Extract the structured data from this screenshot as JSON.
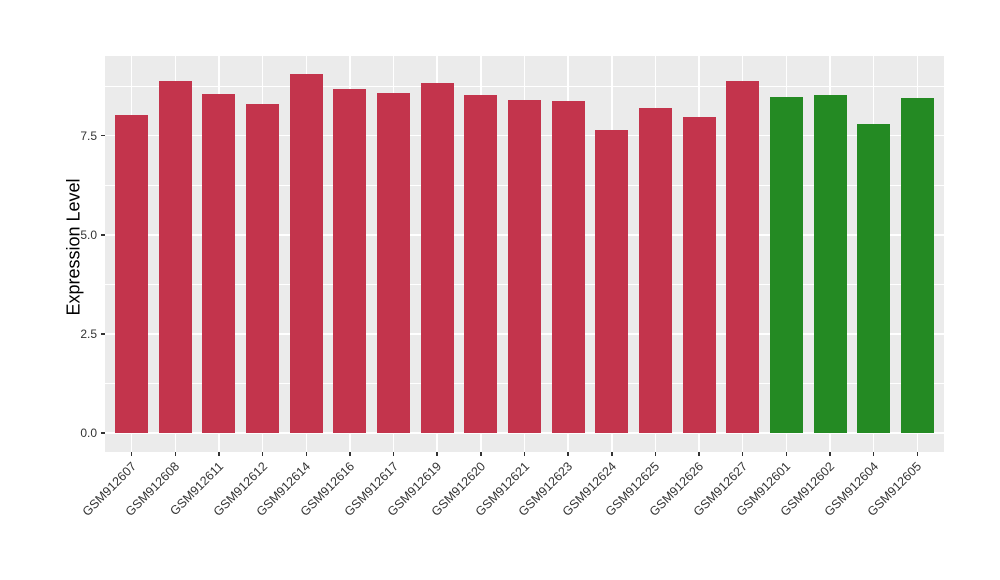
{
  "chart_data": {
    "type": "bar",
    "title": "",
    "xlabel": "",
    "ylabel": "Expression Level",
    "ylim": [
      0,
      9.5
    ],
    "grid": true,
    "legend": "none",
    "panel_background": "#EBEBEB",
    "gridline_color": "#FFFFFF",
    "axis_text_color": "#333333",
    "tick_mark_color": "#333333",
    "y_axis": {
      "ticks": [
        0,
        2.5,
        5,
        7.5
      ],
      "tick_labels": [
        "0.0",
        "2.5",
        "5.0",
        "7.5"
      ],
      "minor_ticks": [
        1.25,
        3.75,
        6.25,
        8.75
      ]
    },
    "colors": {
      "red": "#C3344C",
      "green": "#248A23"
    },
    "bars": [
      {
        "label": "GSM912607",
        "value": 8.02,
        "group": "red"
      },
      {
        "label": "GSM912608",
        "value": 8.88,
        "group": "red"
      },
      {
        "label": "GSM912611",
        "value": 8.54,
        "group": "red"
      },
      {
        "label": "GSM912612",
        "value": 8.29,
        "group": "red"
      },
      {
        "label": "GSM912614",
        "value": 9.05,
        "group": "red"
      },
      {
        "label": "GSM912616",
        "value": 8.67,
        "group": "red"
      },
      {
        "label": "GSM912617",
        "value": 8.57,
        "group": "red"
      },
      {
        "label": "GSM912619",
        "value": 8.82,
        "group": "red"
      },
      {
        "label": "GSM912620",
        "value": 8.53,
        "group": "red"
      },
      {
        "label": "GSM912621",
        "value": 8.4,
        "group": "red"
      },
      {
        "label": "GSM912623",
        "value": 8.37,
        "group": "red"
      },
      {
        "label": "GSM912624",
        "value": 7.64,
        "group": "red"
      },
      {
        "label": "GSM912625",
        "value": 8.19,
        "group": "red"
      },
      {
        "label": "GSM912626",
        "value": 7.98,
        "group": "red"
      },
      {
        "label": "GSM912627",
        "value": 8.88,
        "group": "red"
      },
      {
        "label": "GSM912601",
        "value": 8.48,
        "group": "green"
      },
      {
        "label": "GSM912602",
        "value": 8.53,
        "group": "green"
      },
      {
        "label": "GSM912604",
        "value": 7.79,
        "group": "green"
      },
      {
        "label": "GSM912605",
        "value": 8.45,
        "group": "green"
      }
    ]
  }
}
